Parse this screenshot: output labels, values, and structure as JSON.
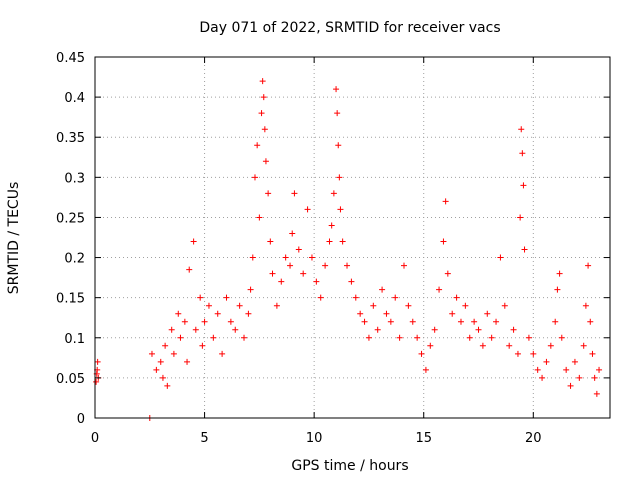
{
  "chart_data": {
    "type": "scatter",
    "title": "Day 071 of 2022, SRMTID for receiver vacs",
    "xlabel": "GPS time / hours",
    "ylabel": "SRMTID / TECUs",
    "xlim": [
      0,
      23.5
    ],
    "ylim": [
      0,
      0.45
    ],
    "x_ticks": [
      0,
      5,
      10,
      15,
      20
    ],
    "y_ticks": [
      0,
      0.05,
      0.1,
      0.15,
      0.2,
      0.25,
      0.3,
      0.35,
      0.4,
      0.45
    ],
    "x_tick_labels": [
      "0",
      "5",
      "10",
      "15",
      "20"
    ],
    "y_tick_labels": [
      "0",
      "0.05",
      "0.1",
      "0.15",
      "0.2",
      "0.25",
      "0.3",
      "0.35",
      "0.4",
      "0.45"
    ],
    "grid": true,
    "marker": "+",
    "color": "#ff0000",
    "series": [
      {
        "name": "SRMTID",
        "points": [
          [
            0.05,
            0.045
          ],
          [
            0.1,
            0.06
          ],
          [
            0.12,
            0.07
          ],
          [
            0.15,
            0.05
          ],
          [
            0.08,
            0.055
          ],
          [
            2.5,
            0.0
          ],
          [
            2.6,
            0.08
          ],
          [
            2.8,
            0.06
          ],
          [
            3.0,
            0.07
          ],
          [
            3.1,
            0.05
          ],
          [
            3.2,
            0.09
          ],
          [
            3.3,
            0.04
          ],
          [
            3.5,
            0.11
          ],
          [
            3.6,
            0.08
          ],
          [
            3.8,
            0.13
          ],
          [
            3.9,
            0.1
          ],
          [
            4.1,
            0.12
          ],
          [
            4.2,
            0.07
          ],
          [
            4.3,
            0.185
          ],
          [
            4.5,
            0.22
          ],
          [
            4.6,
            0.11
          ],
          [
            4.8,
            0.15
          ],
          [
            4.9,
            0.09
          ],
          [
            5.0,
            0.12
          ],
          [
            5.2,
            0.14
          ],
          [
            5.4,
            0.1
          ],
          [
            5.6,
            0.13
          ],
          [
            5.8,
            0.08
          ],
          [
            6.0,
            0.15
          ],
          [
            6.2,
            0.12
          ],
          [
            6.4,
            0.11
          ],
          [
            6.6,
            0.14
          ],
          [
            6.8,
            0.1
          ],
          [
            7.0,
            0.13
          ],
          [
            7.1,
            0.16
          ],
          [
            7.2,
            0.2
          ],
          [
            7.3,
            0.3
          ],
          [
            7.4,
            0.34
          ],
          [
            7.5,
            0.25
          ],
          [
            7.6,
            0.38
          ],
          [
            7.65,
            0.42
          ],
          [
            7.7,
            0.4
          ],
          [
            7.75,
            0.36
          ],
          [
            7.8,
            0.32
          ],
          [
            7.9,
            0.28
          ],
          [
            8.0,
            0.22
          ],
          [
            8.1,
            0.18
          ],
          [
            8.3,
            0.14
          ],
          [
            8.5,
            0.17
          ],
          [
            8.7,
            0.2
          ],
          [
            8.9,
            0.19
          ],
          [
            9.0,
            0.23
          ],
          [
            9.1,
            0.28
          ],
          [
            9.3,
            0.21
          ],
          [
            9.5,
            0.18
          ],
          [
            9.7,
            0.26
          ],
          [
            9.9,
            0.2
          ],
          [
            10.1,
            0.17
          ],
          [
            10.3,
            0.15
          ],
          [
            10.5,
            0.19
          ],
          [
            10.7,
            0.22
          ],
          [
            10.8,
            0.24
          ],
          [
            10.9,
            0.28
          ],
          [
            11.0,
            0.41
          ],
          [
            11.05,
            0.38
          ],
          [
            11.1,
            0.34
          ],
          [
            11.15,
            0.3
          ],
          [
            11.2,
            0.26
          ],
          [
            11.3,
            0.22
          ],
          [
            11.5,
            0.19
          ],
          [
            11.7,
            0.17
          ],
          [
            11.9,
            0.15
          ],
          [
            12.1,
            0.13
          ],
          [
            12.3,
            0.12
          ],
          [
            12.5,
            0.1
          ],
          [
            12.7,
            0.14
          ],
          [
            12.9,
            0.11
          ],
          [
            13.1,
            0.16
          ],
          [
            13.3,
            0.13
          ],
          [
            13.5,
            0.12
          ],
          [
            13.7,
            0.15
          ],
          [
            13.9,
            0.1
          ],
          [
            14.1,
            0.19
          ],
          [
            14.3,
            0.14
          ],
          [
            14.5,
            0.12
          ],
          [
            14.7,
            0.1
          ],
          [
            14.9,
            0.08
          ],
          [
            15.1,
            0.06
          ],
          [
            15.3,
            0.09
          ],
          [
            15.5,
            0.11
          ],
          [
            15.7,
            0.16
          ],
          [
            15.9,
            0.22
          ],
          [
            16.0,
            0.27
          ],
          [
            16.1,
            0.18
          ],
          [
            16.3,
            0.13
          ],
          [
            16.5,
            0.15
          ],
          [
            16.7,
            0.12
          ],
          [
            16.9,
            0.14
          ],
          [
            17.1,
            0.1
          ],
          [
            17.3,
            0.12
          ],
          [
            17.5,
            0.11
          ],
          [
            17.7,
            0.09
          ],
          [
            17.9,
            0.13
          ],
          [
            18.1,
            0.1
          ],
          [
            18.3,
            0.12
          ],
          [
            18.5,
            0.2
          ],
          [
            18.7,
            0.14
          ],
          [
            18.9,
            0.09
          ],
          [
            19.1,
            0.11
          ],
          [
            19.3,
            0.08
          ],
          [
            19.4,
            0.25
          ],
          [
            19.45,
            0.36
          ],
          [
            19.5,
            0.33
          ],
          [
            19.55,
            0.29
          ],
          [
            19.6,
            0.21
          ],
          [
            19.8,
            0.1
          ],
          [
            20.0,
            0.08
          ],
          [
            20.2,
            0.06
          ],
          [
            20.4,
            0.05
          ],
          [
            20.6,
            0.07
          ],
          [
            20.8,
            0.09
          ],
          [
            21.0,
            0.12
          ],
          [
            21.1,
            0.16
          ],
          [
            21.2,
            0.18
          ],
          [
            21.3,
            0.1
          ],
          [
            21.5,
            0.06
          ],
          [
            21.7,
            0.04
          ],
          [
            21.9,
            0.07
          ],
          [
            22.1,
            0.05
          ],
          [
            22.3,
            0.09
          ],
          [
            22.4,
            0.14
          ],
          [
            22.5,
            0.19
          ],
          [
            22.6,
            0.12
          ],
          [
            22.7,
            0.08
          ],
          [
            22.8,
            0.05
          ],
          [
            22.9,
            0.03
          ],
          [
            23.0,
            0.06
          ]
        ]
      }
    ]
  }
}
